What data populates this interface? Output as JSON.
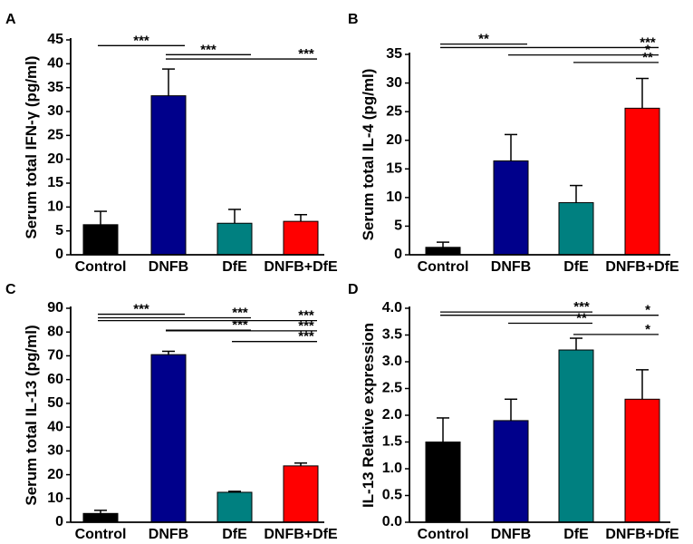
{
  "chart_data": [
    {
      "type": "bar",
      "panel": "A",
      "ylabel": "Serum total IFN-γ (pg/ml)",
      "categories": [
        "Control",
        "DNFB",
        "DfE",
        "DNFB+DfE"
      ],
      "values": [
        6.3,
        33.3,
        6.6,
        7.0
      ],
      "errors": [
        2.8,
        5.6,
        2.9,
        1.4
      ],
      "colors": [
        "#000000",
        "#00008B",
        "#008080",
        "#FF0000"
      ],
      "ylim": [
        0,
        45
      ],
      "yticks": [
        0,
        5,
        10,
        15,
        20,
        25,
        30,
        35,
        40,
        45
      ],
      "significance": [
        {
          "from": 0,
          "to": 1,
          "y": 43.8,
          "label": "***",
          "label_at": "mid"
        },
        {
          "from": 1,
          "to": 2,
          "y": 41.9,
          "label": "***",
          "label_at": "mid"
        },
        {
          "from": 1,
          "to": 3,
          "y": 41.0,
          "label": "***",
          "label_at": "end"
        }
      ]
    },
    {
      "type": "bar",
      "panel": "B",
      "ylabel": "Serum total IL-4 (pg/ml)",
      "categories": [
        "Control",
        "DNFB",
        "DfE",
        "DNFB+DfE"
      ],
      "values": [
        1.3,
        16.4,
        9.1,
        25.6
      ],
      "errors": [
        0.9,
        4.6,
        3.0,
        5.2
      ],
      "colors": [
        "#000000",
        "#00008B",
        "#008080",
        "#FF0000"
      ],
      "ylim": [
        0,
        35
      ],
      "yticks": [
        0,
        5,
        10,
        15,
        20,
        25,
        30,
        35
      ],
      "significance": [
        {
          "from": 0,
          "to": 1,
          "y": 36.8,
          "label": "**",
          "label_at": "mid"
        },
        {
          "from": 0,
          "to": 3,
          "y": 36.2,
          "label": "***",
          "label_at": "end"
        },
        {
          "from": 1,
          "to": 3,
          "y": 34.9,
          "label": "*",
          "label_at": "end"
        },
        {
          "from": 2,
          "to": 3,
          "y": 33.6,
          "label": "**",
          "label_at": "end"
        }
      ]
    },
    {
      "type": "bar",
      "panel": "C",
      "ylabel": "Serum total IL-13 (pg/ml)",
      "categories": [
        "Control",
        "DNFB",
        "DfE",
        "DNFB+DfE"
      ],
      "values": [
        3.7,
        70.5,
        12.6,
        23.7
      ],
      "errors": [
        1.3,
        1.4,
        0.4,
        1.2
      ],
      "colors": [
        "#000000",
        "#00008B",
        "#008080",
        "#FF0000"
      ],
      "ylim": [
        0,
        90
      ],
      "yticks": [
        0,
        10,
        20,
        30,
        40,
        50,
        60,
        70,
        80,
        90
      ],
      "significance": [
        {
          "from": 0,
          "to": 1,
          "y": 87.5,
          "label": "***",
          "label_at": "mid"
        },
        {
          "from": 0,
          "to": 2,
          "y": 86.0,
          "label": "***",
          "label_at": "end"
        },
        {
          "from": 0,
          "to": 3,
          "y": 84.8,
          "label": "***",
          "label_at": "end"
        },
        {
          "from": 1,
          "to": 2,
          "y": 80.8,
          "label": "***",
          "label_at": "end"
        },
        {
          "from": 1,
          "to": 3,
          "y": 80.5,
          "label": "***",
          "label_at": "end"
        },
        {
          "from": 2,
          "to": 3,
          "y": 76.0,
          "label": "***",
          "label_at": "end"
        }
      ]
    },
    {
      "type": "bar",
      "panel": "D",
      "ylabel": "IL-13 Relative expression",
      "categories": [
        "Control",
        "DNFB",
        "DfE",
        "DNFB+DfE"
      ],
      "values": [
        1.5,
        1.9,
        3.22,
        2.3
      ],
      "errors": [
        0.45,
        0.4,
        0.22,
        0.55
      ],
      "colors": [
        "#000000",
        "#00008B",
        "#008080",
        "#FF0000"
      ],
      "ylim": [
        0,
        4.0
      ],
      "yticks": [
        "0.0",
        "0.5",
        "1.0",
        "1.5",
        "2.0",
        "2.5",
        "3.0",
        "3.5",
        "4.0"
      ],
      "significance": [
        {
          "from": 0,
          "to": 2,
          "y": 3.93,
          "label": "***",
          "label_at": "end"
        },
        {
          "from": 0,
          "to": 3,
          "y": 3.87,
          "label": "*",
          "label_at": "end"
        },
        {
          "from": 1,
          "to": 2,
          "y": 3.72,
          "label": "**",
          "label_at": "end"
        },
        {
          "from": 2,
          "to": 3,
          "y": 3.51,
          "label": "*",
          "label_at": "end"
        }
      ]
    }
  ]
}
